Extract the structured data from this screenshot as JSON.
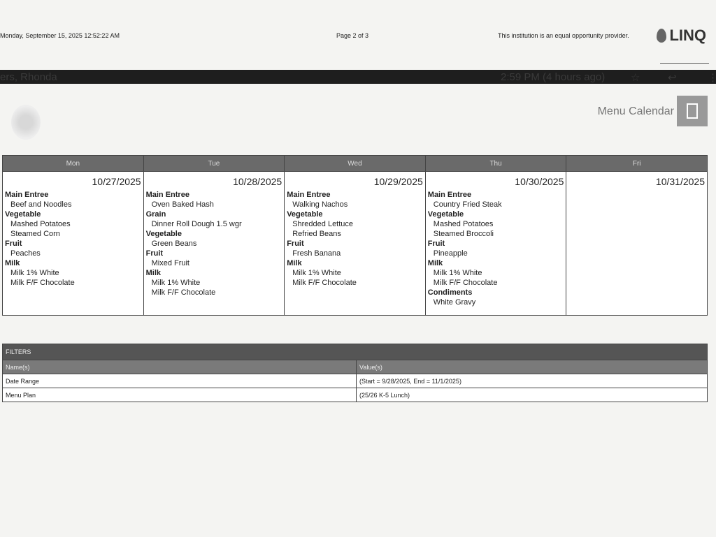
{
  "header": {
    "datetime": "Monday, September 15, 2025 12:52:22 AM",
    "page": "Page 2 of 3",
    "notice": "This institution is an equal opportunity provider.",
    "logo_text": "LINQ"
  },
  "overlay": {
    "sender": "ers, Rhonda",
    "time": "2:59 PM (4 hours ago)"
  },
  "title": "Menu Calendar",
  "calendar": {
    "days": [
      {
        "name": "Mon",
        "date": "10/27/2025",
        "groups": [
          {
            "cat": "Main Entree",
            "items": [
              "Beef and Noodles"
            ]
          },
          {
            "cat": "Vegetable",
            "items": [
              "Mashed Potatoes",
              "Steamed Corn"
            ]
          },
          {
            "cat": "Fruit",
            "items": [
              "Peaches"
            ]
          },
          {
            "cat": "Milk",
            "items": [
              "Milk 1% White",
              "Milk F/F Chocolate"
            ]
          }
        ]
      },
      {
        "name": "Tue",
        "date": "10/28/2025",
        "groups": [
          {
            "cat": "Main Entree",
            "items": [
              "Oven Baked Hash"
            ]
          },
          {
            "cat": "Grain",
            "items": [
              "Dinner Roll Dough 1.5 wgr"
            ]
          },
          {
            "cat": "Vegetable",
            "items": [
              "Green Beans"
            ]
          },
          {
            "cat": "Fruit",
            "items": [
              "Mixed Fruit"
            ]
          },
          {
            "cat": "Milk",
            "items": [
              "Milk 1% White",
              "Milk F/F Chocolate"
            ]
          }
        ]
      },
      {
        "name": "Wed",
        "date": "10/29/2025",
        "groups": [
          {
            "cat": "Main Entree",
            "items": [
              "Walking Nachos"
            ]
          },
          {
            "cat": "Vegetable",
            "items": [
              "Shredded Lettuce",
              "Refried Beans"
            ]
          },
          {
            "cat": "Fruit",
            "items": [
              "Fresh Banana"
            ]
          },
          {
            "cat": "Milk",
            "items": [
              "Milk 1% White",
              "Milk F/F Chocolate"
            ]
          }
        ]
      },
      {
        "name": "Thu",
        "date": "10/30/2025",
        "groups": [
          {
            "cat": "Main Entree",
            "items": [
              "Country Fried Steak"
            ]
          },
          {
            "cat": "Vegetable",
            "items": [
              "Mashed Potatoes",
              "Steamed Broccoli"
            ]
          },
          {
            "cat": "Fruit",
            "items": [
              "Pineapple"
            ]
          },
          {
            "cat": "Milk",
            "items": [
              "Milk 1% White",
              "Milk F/F Chocolate"
            ]
          },
          {
            "cat": "Condiments",
            "items": [
              "White Gravy"
            ]
          }
        ]
      },
      {
        "name": "Fri",
        "date": "10/31/2025",
        "groups": []
      }
    ]
  },
  "filters": {
    "title": "FILTERS",
    "col_name": "Name(s)",
    "col_value": "Value(s)",
    "rows": [
      {
        "name": "Date Range",
        "value": "(Start = 9/28/2025, End = 11/1/2025)"
      },
      {
        "name": "Menu Plan",
        "value": "(25/26 K-5 Lunch)"
      }
    ]
  }
}
